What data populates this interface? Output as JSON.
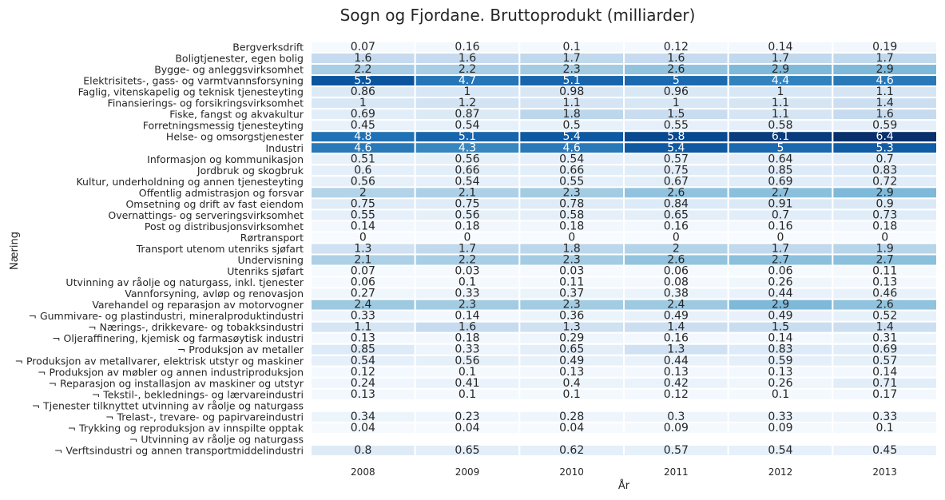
{
  "chart_data": {
    "type": "heatmap",
    "title": "Sogn og Fjordane. Bruttoprodukt (milliarder)",
    "xlabel": "År",
    "ylabel": "Næring",
    "colormap": "Blues",
    "color_range": [
      0,
      6.4
    ],
    "grid": false,
    "columns": [
      "2008",
      "2009",
      "2010",
      "2011",
      "2012",
      "2013"
    ],
    "rows": [
      "Bergverksdrift",
      "Boligtjenester, egen bolig",
      "Bygge- og anleggsvirksomhet",
      "Elektrisitets-, gass- og varmtvannsforsyning",
      "Faglig, vitenskapelig og teknisk tjenesteyting",
      "Finansierings- og forsikringsvirksomhet",
      "Fiske, fangst og akvakultur",
      "Forretningsmessig tjenesteyting",
      "Helse- og omsorgstjenester",
      "Industri",
      "Informasjon og kommunikasjon",
      "Jordbruk og skogbruk",
      "Kultur, underholdning og annen tjenesteyting",
      "Offentlig admistrasjon og forsvar",
      "Omsetning og drift av fast eiendom",
      "Overnattings- og serveringsvirksomhet",
      "Post og distribusjonsvirksomhet",
      "Rørtransport",
      "Transport utenom utenriks sjøfart",
      "Undervisning",
      "Utenriks sjøfart",
      "Utvinning av råolje og naturgass, inkl. tjenester",
      "Vannforsyning, avløp og renovasjon",
      "Varehandel og reparasjon av motorvogner",
      "¬ Gummivare- og plastindustri, mineralproduktindustri",
      "¬ Nærings-, drikkevare- og tobakksindustri",
      "¬ Oljeraffinering, kjemisk og farmasøytisk industri",
      "¬ Produksjon av metaller",
      "¬ Produksjon av metallvarer, elektrisk utstyr og maskiner",
      "¬ Produksjon av møbler og annen industriproduksjon",
      "¬ Reparasjon og installasjon av maskiner og utstyr",
      "¬ Tekstil-, beklednings- og lærvareindustri",
      "¬ Tjenester tilknyttet utvinning av råolje og naturgass",
      "¬ Trelast-, trevare- og papirvareindustri",
      "¬ Trykking og reproduksjon av innspilte opptak",
      "¬ Utvinning av råolje og naturgass",
      "¬ Verftsindustri og annen transportmiddelindustri"
    ],
    "values": [
      [
        0.07,
        0.16,
        0.1,
        0.12,
        0.14,
        0.19
      ],
      [
        1.6,
        1.6,
        1.7,
        1.6,
        1.7,
        1.7
      ],
      [
        2.2,
        2.2,
        2.3,
        2.6,
        2.9,
        2.9
      ],
      [
        5.5,
        4.7,
        5.1,
        5,
        4.4,
        4.6
      ],
      [
        0.86,
        1,
        0.98,
        0.96,
        1,
        1.1
      ],
      [
        1,
        1.2,
        1.1,
        1,
        1.1,
        1.4
      ],
      [
        0.69,
        0.87,
        1.8,
        1.5,
        1.1,
        1.6
      ],
      [
        0.45,
        0.54,
        0.5,
        0.55,
        0.58,
        0.59
      ],
      [
        4.8,
        5.1,
        5.4,
        5.8,
        6.1,
        6.4
      ],
      [
        4.6,
        4.3,
        4.6,
        5.4,
        5,
        5.3
      ],
      [
        0.51,
        0.56,
        0.54,
        0.57,
        0.64,
        0.7
      ],
      [
        0.6,
        0.66,
        0.66,
        0.75,
        0.85,
        0.83
      ],
      [
        0.56,
        0.54,
        0.55,
        0.67,
        0.69,
        0.72
      ],
      [
        2,
        2.1,
        2.3,
        2.6,
        2.7,
        2.9
      ],
      [
        0.75,
        0.75,
        0.78,
        0.84,
        0.91,
        0.9
      ],
      [
        0.55,
        0.56,
        0.58,
        0.65,
        0.7,
        0.73
      ],
      [
        0.14,
        0.18,
        0.18,
        0.16,
        0.16,
        0.18
      ],
      [
        0,
        0,
        0,
        0,
        0,
        0
      ],
      [
        1.3,
        1.7,
        1.8,
        2,
        1.7,
        1.9
      ],
      [
        2.1,
        2.2,
        2.3,
        2.6,
        2.7,
        2.7
      ],
      [
        0.07,
        0.03,
        0.03,
        0.06,
        0.06,
        0.11
      ],
      [
        0.06,
        0.1,
        0.11,
        0.08,
        0.26,
        0.13
      ],
      [
        0.27,
        0.33,
        0.37,
        0.38,
        0.44,
        0.46
      ],
      [
        2.4,
        2.3,
        2.3,
        2.4,
        2.9,
        2.6
      ],
      [
        0.33,
        0.14,
        0.36,
        0.49,
        0.49,
        0.52
      ],
      [
        1.1,
        1.6,
        1.3,
        1.4,
        1.5,
        1.4
      ],
      [
        0.13,
        0.18,
        0.29,
        0.16,
        0.14,
        0.31
      ],
      [
        0.85,
        0.33,
        0.65,
        1.3,
        0.83,
        0.69
      ],
      [
        0.54,
        0.56,
        0.49,
        0.44,
        0.59,
        0.57
      ],
      [
        0.12,
        0.1,
        0.13,
        0.13,
        0.13,
        0.14
      ],
      [
        0.24,
        0.41,
        0.4,
        0.42,
        0.26,
        0.71
      ],
      [
        0.13,
        0.1,
        0.1,
        0.12,
        0.1,
        0.17
      ],
      [
        null,
        null,
        null,
        null,
        null,
        null
      ],
      [
        0.34,
        0.23,
        0.28,
        0.3,
        0.33,
        0.33
      ],
      [
        0.04,
        0.04,
        0.04,
        0.09,
        0.09,
        0.1
      ],
      [
        null,
        null,
        null,
        null,
        null,
        null
      ],
      [
        0.8,
        0.65,
        0.62,
        0.57,
        0.54,
        0.45
      ]
    ]
  }
}
